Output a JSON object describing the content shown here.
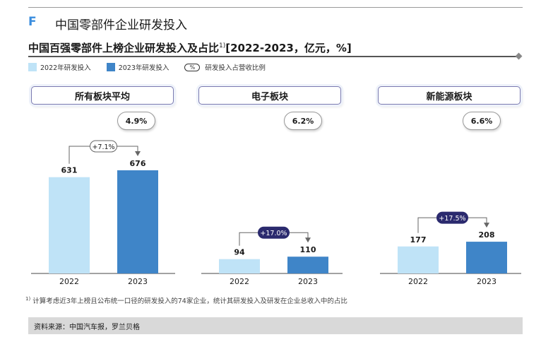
{
  "section": {
    "letter": "F",
    "title": "中国零部件企业研发投入"
  },
  "main_title": {
    "text": "中国百强零部件上榜企业研发投入及占比",
    "sup": "1)",
    "suffix": "[2022-2023，亿元，%]"
  },
  "legend": {
    "items": [
      {
        "label": "2022年研发投入",
        "color": "#bfe3f7"
      },
      {
        "label": "2023年研发投入",
        "color": "#3f85c8"
      }
    ],
    "pct_symbol": "%",
    "pct_label": "研发投入占营收比例"
  },
  "colors": {
    "y2022": "#bfe3f7",
    "y2023": "#3f85c8",
    "growth_dark": "#2b2a6e"
  },
  "chart_data": [
    {
      "type": "bar",
      "title": "所有板块平均",
      "categories": [
        "2022",
        "2023"
      ],
      "values": [
        631,
        676
      ],
      "growth": "+7.1%",
      "growth_style": "light",
      "share": "4.9%"
    },
    {
      "type": "bar",
      "title": "电子板块",
      "categories": [
        "2022",
        "2023"
      ],
      "values": [
        94,
        110
      ],
      "growth": "+17.0%",
      "growth_style": "dark",
      "share": "6.2%"
    },
    {
      "type": "bar",
      "title": "新能源板块",
      "categories": [
        "2022",
        "2023"
      ],
      "values": [
        177,
        208
      ],
      "growth": "+17.5%",
      "growth_style": "dark",
      "share": "6.6%"
    }
  ],
  "footnote": {
    "sup": "1)",
    "text": "计算考虑近3年上榜且公布统一口径的研发投入的74家企业，统计其研发投入及研发在企业总收入中的占比"
  },
  "source": "资料来源：中国汽车报，罗兰贝格"
}
